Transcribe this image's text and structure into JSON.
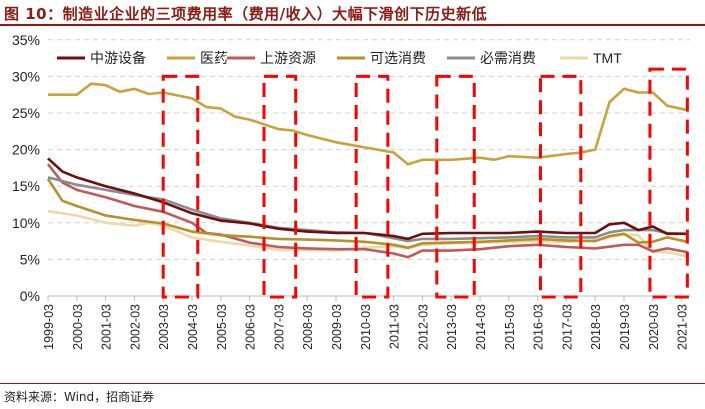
{
  "title": "图 10：制造业企业的三项费用率（费用/收入）大幅下滑创下历史新低",
  "source": "资料来源：Wind，招商证券",
  "chart_data": {
    "type": "line",
    "title": "图 10：制造业企业的三项费用率（费用/收入）大幅下滑创下历史新低",
    "xlabel": "",
    "ylabel": "",
    "ylim": [
      0,
      35
    ],
    "xlim": [
      1999.0,
      2021.3
    ],
    "grid": "horizontal-dashed",
    "legend_position": "top",
    "y_ticks": [
      "0%",
      "5%",
      "10%",
      "15%",
      "20%",
      "25%",
      "30%",
      "35%"
    ],
    "y_tick_values": [
      0,
      5,
      10,
      15,
      20,
      25,
      30,
      35
    ],
    "x_ticks": [
      "1999-03",
      "2000-03",
      "2001-03",
      "2002-03",
      "2003-03",
      "2004-03",
      "2005-03",
      "2006-03",
      "2007-03",
      "2008-03",
      "2009-03",
      "2010-03",
      "2011-03",
      "2012-03",
      "2013-03",
      "2014-03",
      "2015-03",
      "2016-03",
      "2017-03",
      "2018-03",
      "2019-03",
      "2020-03",
      "2021-03"
    ],
    "series": [
      {
        "name": "中游设备",
        "color": "#6b0f0f",
        "x": [
          1999,
          1999.5,
          2000,
          2001,
          2002,
          2003,
          2004,
          2005,
          2006,
          2007,
          2008,
          2009,
          2010,
          2011,
          2011.5,
          2012,
          2013,
          2014,
          2015,
          2016,
          2017,
          2018,
          2018.5,
          2019,
          2019.5,
          2020,
          2020.5,
          2021.2
        ],
        "y": [
          18.8,
          17,
          16.2,
          15,
          14,
          12.8,
          11.3,
          10.3,
          9.9,
          9.2,
          8.8,
          8.6,
          8.6,
          8.2,
          7.8,
          8.5,
          8.6,
          8.6,
          8.6,
          8.8,
          8.6,
          8.6,
          9.8,
          10,
          9,
          9.5,
          8.5,
          8.5
        ]
      },
      {
        "name": "医药",
        "color": "#c9a23a",
        "x": [
          1999,
          2000,
          2000.5,
          2001,
          2001.5,
          2002,
          2002.5,
          2003,
          2004,
          2004.5,
          2005,
          2005.5,
          2006,
          2007,
          2007.5,
          2008,
          2009,
          2010,
          2011,
          2011.5,
          2012,
          2013,
          2014,
          2014.5,
          2015,
          2016,
          2017,
          2017.5,
          2018,
          2018.5,
          2019,
          2019.5,
          2020,
          2020.5,
          2021.2
        ],
        "y": [
          27.5,
          27.5,
          29,
          28.8,
          27.9,
          28.3,
          27.6,
          27.8,
          27,
          25.8,
          25.6,
          24.5,
          24.1,
          22.8,
          22.6,
          22,
          21,
          20.3,
          19.6,
          18,
          18.6,
          18.6,
          18.9,
          18.6,
          19.1,
          18.9,
          19.4,
          19.6,
          20,
          26.5,
          28.3,
          27.8,
          27.8,
          26,
          25.4
        ]
      },
      {
        "name": "上游资源",
        "color": "#c05a5a",
        "x": [
          1999,
          1999.5,
          2000,
          2001,
          2002,
          2003,
          2004,
          2004.5,
          2005,
          2006,
          2007,
          2008,
          2009,
          2010,
          2011,
          2011.5,
          2012,
          2013,
          2014,
          2015,
          2016,
          2017,
          2018,
          2019,
          2019.5,
          2020,
          2020.5,
          2021.2
        ],
        "y": [
          18,
          15.5,
          14.5,
          13.5,
          12.3,
          11.5,
          10,
          8.6,
          8.4,
          7.3,
          6.7,
          6.5,
          6.4,
          6.4,
          5.8,
          5.3,
          6.2,
          6.2,
          6.4,
          6.8,
          7,
          6.7,
          6.5,
          7,
          7,
          6.1,
          6.5,
          6
        ]
      },
      {
        "name": "可选消费",
        "color": "#b8902a",
        "x": [
          1999,
          1999.5,
          2000,
          2001,
          2002,
          2003,
          2004,
          2005,
          2006,
          2007,
          2008,
          2009,
          2010,
          2011,
          2011.5,
          2012,
          2013,
          2014,
          2015,
          2016,
          2017,
          2018,
          2018.5,
          2019,
          2019.5,
          2020,
          2020.5,
          2021.2
        ],
        "y": [
          16,
          13,
          12.3,
          11,
          10.4,
          9.9,
          8.8,
          8.3,
          8.1,
          7.8,
          7.7,
          7.6,
          7.4,
          7,
          6.6,
          7.2,
          7.3,
          7.4,
          7.6,
          7.8,
          7.6,
          7.5,
          8.2,
          8.5,
          7.3,
          7.4,
          8,
          7.4
        ]
      },
      {
        "name": "必需消费",
        "color": "#8c8c8c",
        "x": [
          1999,
          2000,
          2001,
          2002,
          2003,
          2004,
          2005,
          2006,
          2007,
          2008,
          2009,
          2010,
          2011,
          2011.5,
          2012,
          2013,
          2014,
          2015,
          2016,
          2017,
          2018,
          2018.5,
          2019,
          2020,
          2020.5,
          2021.2
        ],
        "y": [
          16.2,
          15.2,
          14.5,
          13.8,
          13.2,
          11.8,
          10.6,
          10,
          9.3,
          9,
          8.7,
          8.6,
          7.9,
          7.5,
          7.8,
          7.8,
          7.9,
          8,
          8.2,
          8,
          8,
          8.7,
          9,
          9,
          8.6,
          8.5
        ]
      },
      {
        "name": "TMT",
        "color": "#ecd9a8",
        "x": [
          1999,
          2000,
          2001,
          2002,
          2002.5,
          2003,
          2004,
          2005,
          2006,
          2007,
          2008,
          2009,
          2010,
          2011,
          2011.5,
          2012,
          2013,
          2014,
          2015,
          2016,
          2017,
          2018,
          2019,
          2019.5,
          2020,
          2020.5,
          2021.2
        ],
        "y": [
          11.6,
          11,
          10,
          9.6,
          10,
          9.6,
          8,
          7.4,
          6.9,
          6.3,
          6.3,
          6.2,
          6.6,
          6.8,
          6.5,
          7,
          7.2,
          7.3,
          7.4,
          7.5,
          7.4,
          7.6,
          8.4,
          8.3,
          6,
          6,
          5.4
        ]
      }
    ],
    "highlight_periods": [
      {
        "x": [
          2003.0,
          2004.2
        ],
        "y": [
          0,
          30
        ]
      },
      {
        "x": [
          2006.5,
          2007.6
        ],
        "y": [
          0,
          30
        ]
      },
      {
        "x": [
          2009.7,
          2010.8
        ],
        "y": [
          0,
          30
        ]
      },
      {
        "x": [
          2012.5,
          2013.8
        ],
        "y": [
          0,
          30
        ]
      },
      {
        "x": [
          2016.1,
          2017.5
        ],
        "y": [
          0,
          30
        ]
      },
      {
        "x": [
          2019.9,
          2021.2
        ],
        "y": [
          0,
          31
        ]
      }
    ],
    "highlight_color": "#ff0000"
  }
}
